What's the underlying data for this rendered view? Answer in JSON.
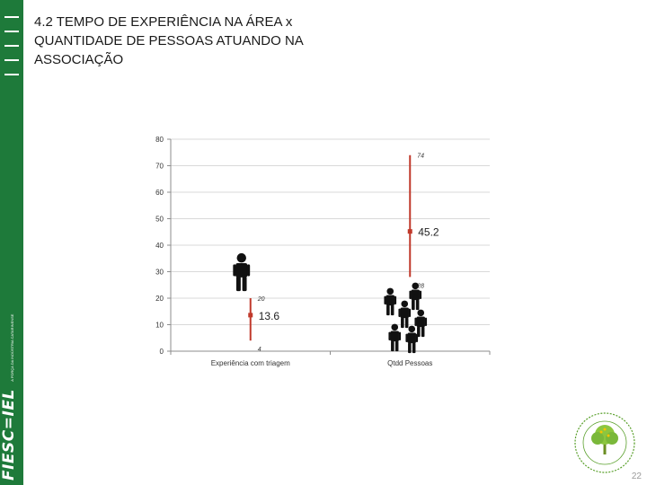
{
  "slide": {
    "title": "4.2 TEMPO DE EXPERIÊNCIA NA ÁREA x QUANTIDADE DE PESSOAS ATUANDO NA ASSOCIAÇÃO",
    "page_number": "22",
    "sidebar_brand": "FIESC",
    "sidebar_brand2": "IEL",
    "sidebar_tagline": "A FORÇA DA INDÚSTRIA CATARINENSE"
  },
  "colors": {
    "sidebar": "#1e7a3a",
    "range_line": "#c0392b",
    "mean_marker": "#c0392b",
    "grid": "#d9d9d9",
    "person": "#111111"
  },
  "chart_data": {
    "type": "high-low-mean",
    "categories": [
      "Experiência com triagem",
      "Qtdd Pessoas"
    ],
    "series": [
      {
        "category": "Experiência com triagem",
        "low": 4,
        "high": 20,
        "mean": 13.6,
        "low_label": "4",
        "high_label": "20",
        "mean_label": "13.6"
      },
      {
        "category": "Qtdd Pessoas",
        "low": 28,
        "high": 74,
        "mean": 45.2,
        "low_label": "28",
        "high_label": "74",
        "mean_label": "45.2"
      }
    ],
    "yticks": [
      0,
      10,
      20,
      30,
      40,
      50,
      60,
      70,
      80
    ],
    "ylim": [
      0,
      80
    ],
    "grid": true,
    "icons": [
      "person-icon",
      "group-of-people-icon"
    ]
  }
}
